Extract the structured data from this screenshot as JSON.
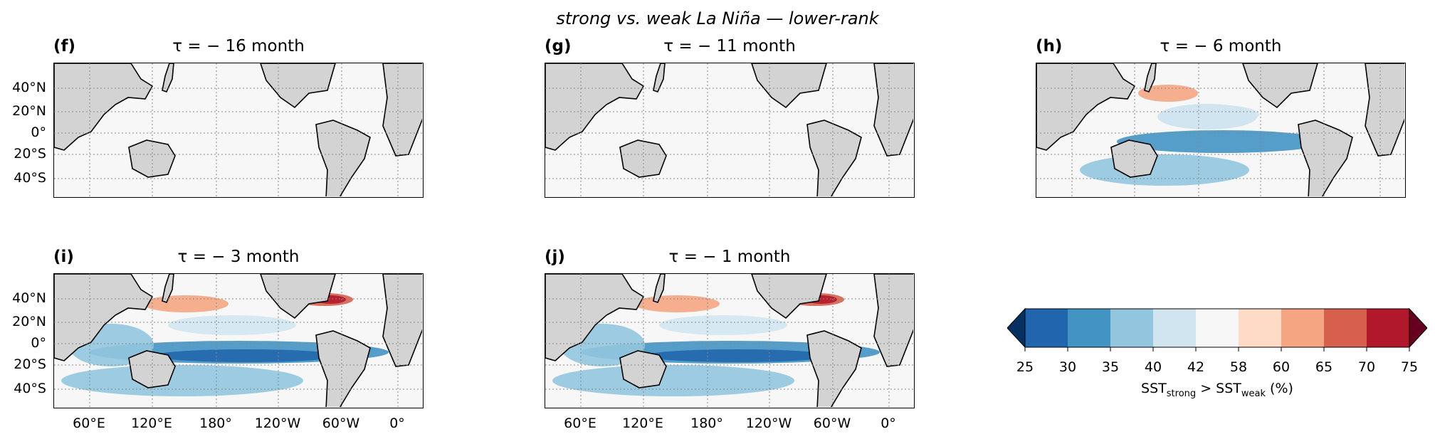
{
  "figure": {
    "suptitle": "strong vs. weak La Niña — lower-rank",
    "y_ticks": [
      "40°N",
      "20°N",
      "0°",
      "20°S",
      "40°S"
    ],
    "x_ticks": [
      "60°E",
      "120°E",
      "180°",
      "120°W",
      "60°W",
      "0°"
    ]
  },
  "panels": [
    {
      "label": "(f)",
      "title": "τ = − 16 month",
      "intensity": 0.05
    },
    {
      "label": "(g)",
      "title": "τ = − 11 month",
      "intensity": 0.03
    },
    {
      "label": "(h)",
      "title": "τ = − 6 month",
      "intensity": 0.3
    },
    {
      "label": "(i)",
      "title": "τ = − 3 month",
      "intensity": 0.75
    },
    {
      "label": "(j)",
      "title": "τ = − 1 month",
      "intensity": 1.0
    }
  ],
  "colorbar": {
    "ticks": [
      "25",
      "30",
      "35",
      "40",
      "42",
      "58",
      "60",
      "65",
      "70",
      "75"
    ],
    "label_main": "SST",
    "label_sub1": "strong",
    "label_mid": " > SST",
    "label_sub2": "weak",
    "label_end": " (%)",
    "colors": [
      "#053061",
      "#2166ac",
      "#4393c3",
      "#92c5de",
      "#d1e5f0",
      "#f7f7f7",
      "#fddbc7",
      "#f4a582",
      "#d6604d",
      "#b2182b",
      "#67001f"
    ]
  },
  "chart_data": {
    "type": "heatmap",
    "title": "strong vs. weak La Niña — lower-rank",
    "colorbar_label": "SSTstrong > SSTweak (%)",
    "levels": [
      25,
      30,
      35,
      40,
      42,
      58,
      60,
      65,
      70,
      75
    ],
    "x_ticks": [
      "60°E",
      "120°E",
      "180°",
      "120°W",
      "60°W",
      "0°"
    ],
    "y_ticks": [
      "40°N",
      "20°N",
      "0°",
      "20°S",
      "40°S"
    ],
    "panels": [
      "(f) τ = − 16 month",
      "(g) τ = − 11 month",
      "(h) τ = − 6 month",
      "(i) τ = − 3 month",
      "(j) τ = − 1 month"
    ]
  }
}
